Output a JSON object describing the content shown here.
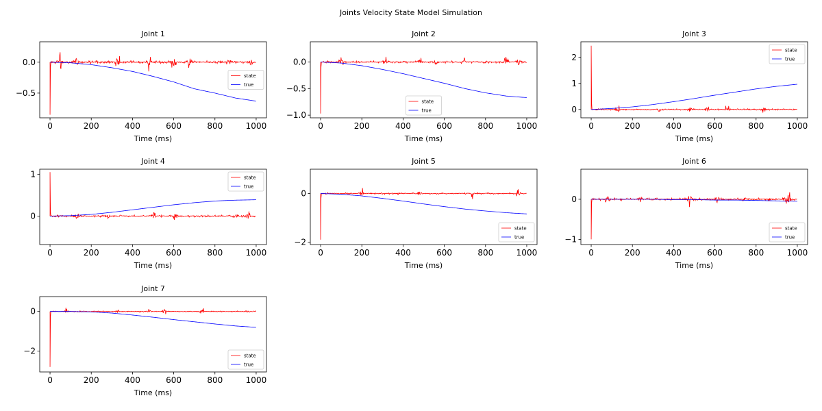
{
  "figure": {
    "title": "Joints Velocity State Model Simulation"
  },
  "colors": {
    "state": "#ff0000",
    "true": "#0000ff"
  },
  "chart_data": [
    {
      "type": "line",
      "title": "Joint 1",
      "xlabel": "Time (ms)",
      "ylabel": "",
      "xlim": [
        -50,
        1050
      ],
      "ylim": [
        -0.9,
        0.33
      ],
      "xticks": [
        0,
        200,
        400,
        600,
        800,
        1000
      ],
      "xtick_labels": [
        "0",
        "200",
        "400",
        "600",
        "800",
        "1000"
      ],
      "yticks": [
        0.0,
        -0.5
      ],
      "ytick_labels": [
        "0.0",
        "−0.5"
      ],
      "legend_position": "center-right",
      "series": [
        {
          "name": "state",
          "color": "#ff0000",
          "spike": -0.85,
          "noise_amp": 0.04,
          "burst_times": [
            50,
            130,
            330,
            480,
            600,
            680,
            870,
            970
          ]
        },
        {
          "name": "true",
          "color": "#0000ff",
          "x": [
            0,
            100,
            200,
            300,
            400,
            500,
            600,
            700,
            800,
            900,
            1000
          ],
          "y": [
            0.0,
            -0.01,
            -0.04,
            -0.09,
            -0.15,
            -0.23,
            -0.32,
            -0.43,
            -0.5,
            -0.58,
            -0.63
          ]
        }
      ]
    },
    {
      "type": "line",
      "title": "Joint 2",
      "xlabel": "Time (ms)",
      "ylabel": "",
      "xlim": [
        -50,
        1050
      ],
      "ylim": [
        -1.05,
        0.38
      ],
      "xticks": [
        0,
        200,
        400,
        600,
        800,
        1000
      ],
      "xtick_labels": [
        "0",
        "200",
        "400",
        "600",
        "800",
        "1000"
      ],
      "yticks": [
        0.0,
        -0.5,
        -1.0
      ],
      "ytick_labels": [
        "0.0",
        "−0.5",
        "−1.0"
      ],
      "legend_position": "lower-center",
      "series": [
        {
          "name": "state",
          "color": "#ff0000",
          "spike": -0.97,
          "noise_amp": 0.035,
          "burst_times": [
            100,
            310,
            480,
            560,
            690,
            900,
            960
          ]
        },
        {
          "name": "true",
          "color": "#0000ff",
          "x": [
            0,
            100,
            200,
            300,
            400,
            500,
            600,
            700,
            800,
            900,
            1000
          ],
          "y": [
            0.0,
            -0.02,
            -0.07,
            -0.14,
            -0.22,
            -0.31,
            -0.4,
            -0.5,
            -0.58,
            -0.64,
            -0.67
          ]
        }
      ]
    },
    {
      "type": "line",
      "title": "Joint 3",
      "xlabel": "Time (ms)",
      "ylabel": "",
      "xlim": [
        -50,
        1050
      ],
      "ylim": [
        -0.32,
        2.6
      ],
      "xticks": [
        0,
        200,
        400,
        600,
        800,
        1000
      ],
      "xtick_labels": [
        "0",
        "200",
        "400",
        "600",
        "800",
        "1000"
      ],
      "yticks": [
        0,
        1,
        2
      ],
      "ytick_labels": [
        "0",
        "1",
        "2"
      ],
      "legend_position": "top-right",
      "series": [
        {
          "name": "state",
          "color": "#ff0000",
          "spike": 2.45,
          "noise_amp": 0.05,
          "burst_times": [
            130,
            330,
            480,
            560,
            660,
            840
          ]
        },
        {
          "name": "true",
          "color": "#0000ff",
          "x": [
            0,
            100,
            200,
            300,
            400,
            500,
            600,
            700,
            800,
            900,
            1000
          ],
          "y": [
            0.0,
            0.04,
            0.1,
            0.19,
            0.3,
            0.42,
            0.55,
            0.67,
            0.79,
            0.89,
            0.97
          ]
        }
      ]
    },
    {
      "type": "line",
      "title": "Joint 4",
      "xlabel": "Time (ms)",
      "ylabel": "",
      "xlim": [
        -50,
        1050
      ],
      "ylim": [
        -0.68,
        1.12
      ],
      "xticks": [
        0,
        200,
        400,
        600,
        800,
        1000
      ],
      "xtick_labels": [
        "0",
        "200",
        "400",
        "600",
        "800",
        "1000"
      ],
      "yticks": [
        0,
        1
      ],
      "ytick_labels": [
        "0",
        "1"
      ],
      "legend_position": "top-right",
      "series": [
        {
          "name": "state",
          "color": "#ff0000",
          "spike": 1.05,
          "noise_amp": 0.04,
          "burst_times": [
            130,
            280,
            500,
            610,
            900,
            960
          ]
        },
        {
          "name": "true",
          "color": "#0000ff",
          "x": [
            0,
            100,
            200,
            300,
            400,
            500,
            600,
            700,
            800,
            900,
            1000
          ],
          "y": [
            0.0,
            0.01,
            0.04,
            0.09,
            0.15,
            0.21,
            0.27,
            0.32,
            0.36,
            0.38,
            0.39
          ]
        }
      ]
    },
    {
      "type": "line",
      "title": "Joint 5",
      "xlabel": "Time (ms)",
      "ylabel": "",
      "xlim": [
        -50,
        1050
      ],
      "ylim": [
        -2.1,
        1.0
      ],
      "xticks": [
        0,
        200,
        400,
        600,
        800,
        1000
      ],
      "xtick_labels": [
        "0",
        "200",
        "400",
        "600",
        "800",
        "1000"
      ],
      "yticks": [
        0,
        -2
      ],
      "ytick_labels": [
        "0",
        "−2"
      ],
      "legend_position": "lower-right",
      "series": [
        {
          "name": "state",
          "color": "#ff0000",
          "spike": -1.9,
          "noise_amp": 0.06,
          "burst_times": [
            200,
            480,
            740,
            960
          ]
        },
        {
          "name": "true",
          "color": "#0000ff",
          "x": [
            0,
            100,
            200,
            300,
            400,
            500,
            600,
            700,
            800,
            900,
            1000
          ],
          "y": [
            0.0,
            -0.03,
            -0.1,
            -0.2,
            -0.31,
            -0.43,
            -0.54,
            -0.64,
            -0.72,
            -0.79,
            -0.84
          ]
        }
      ]
    },
    {
      "type": "line",
      "title": "Joint 6",
      "xlabel": "Time (ms)",
      "ylabel": "",
      "xlim": [
        -50,
        1050
      ],
      "ylim": [
        -1.13,
        0.75
      ],
      "xticks": [
        0,
        200,
        400,
        600,
        800,
        1000
      ],
      "xtick_labels": [
        "0",
        "200",
        "400",
        "600",
        "800",
        "1000"
      ],
      "yticks": [
        0,
        -1
      ],
      "ytick_labels": [
        "0",
        "−1"
      ],
      "legend_position": "lower-right",
      "series": [
        {
          "name": "state",
          "color": "#ff0000",
          "spike": -1.0,
          "noise_amp": 0.05,
          "burst_times": [
            80,
            240,
            480,
            610,
            740,
            940,
            960
          ]
        },
        {
          "name": "true",
          "color": "#0000ff",
          "x": [
            0,
            100,
            200,
            300,
            400,
            500,
            600,
            700,
            800,
            900,
            1000
          ],
          "y": [
            0.0,
            0.0,
            0.0,
            0.0,
            -0.01,
            -0.01,
            -0.02,
            -0.02,
            -0.03,
            -0.04,
            -0.05
          ]
        }
      ]
    },
    {
      "type": "line",
      "title": "Joint 7",
      "xlabel": "Time (ms)",
      "ylabel": "",
      "xlim": [
        -50,
        1050
      ],
      "ylim": [
        -3.05,
        0.75
      ],
      "xticks": [
        0,
        200,
        400,
        600,
        800,
        1000
      ],
      "xtick_labels": [
        "0",
        "200",
        "400",
        "600",
        "800",
        "1000"
      ],
      "yticks": [
        0,
        -2
      ],
      "ytick_labels": [
        "0",
        "−2"
      ],
      "legend_position": "lower-right",
      "series": [
        {
          "name": "state",
          "color": "#ff0000",
          "spike": -2.8,
          "noise_amp": 0.05,
          "burst_times": [
            80,
            330,
            480,
            560,
            740,
            960
          ]
        },
        {
          "name": "true",
          "color": "#0000ff",
          "x": [
            0,
            100,
            200,
            300,
            400,
            500,
            600,
            700,
            800,
            900,
            1000
          ],
          "y": [
            0.0,
            0.0,
            -0.02,
            -0.08,
            -0.18,
            -0.29,
            -0.41,
            -0.52,
            -0.63,
            -0.73,
            -0.8
          ]
        }
      ]
    }
  ]
}
